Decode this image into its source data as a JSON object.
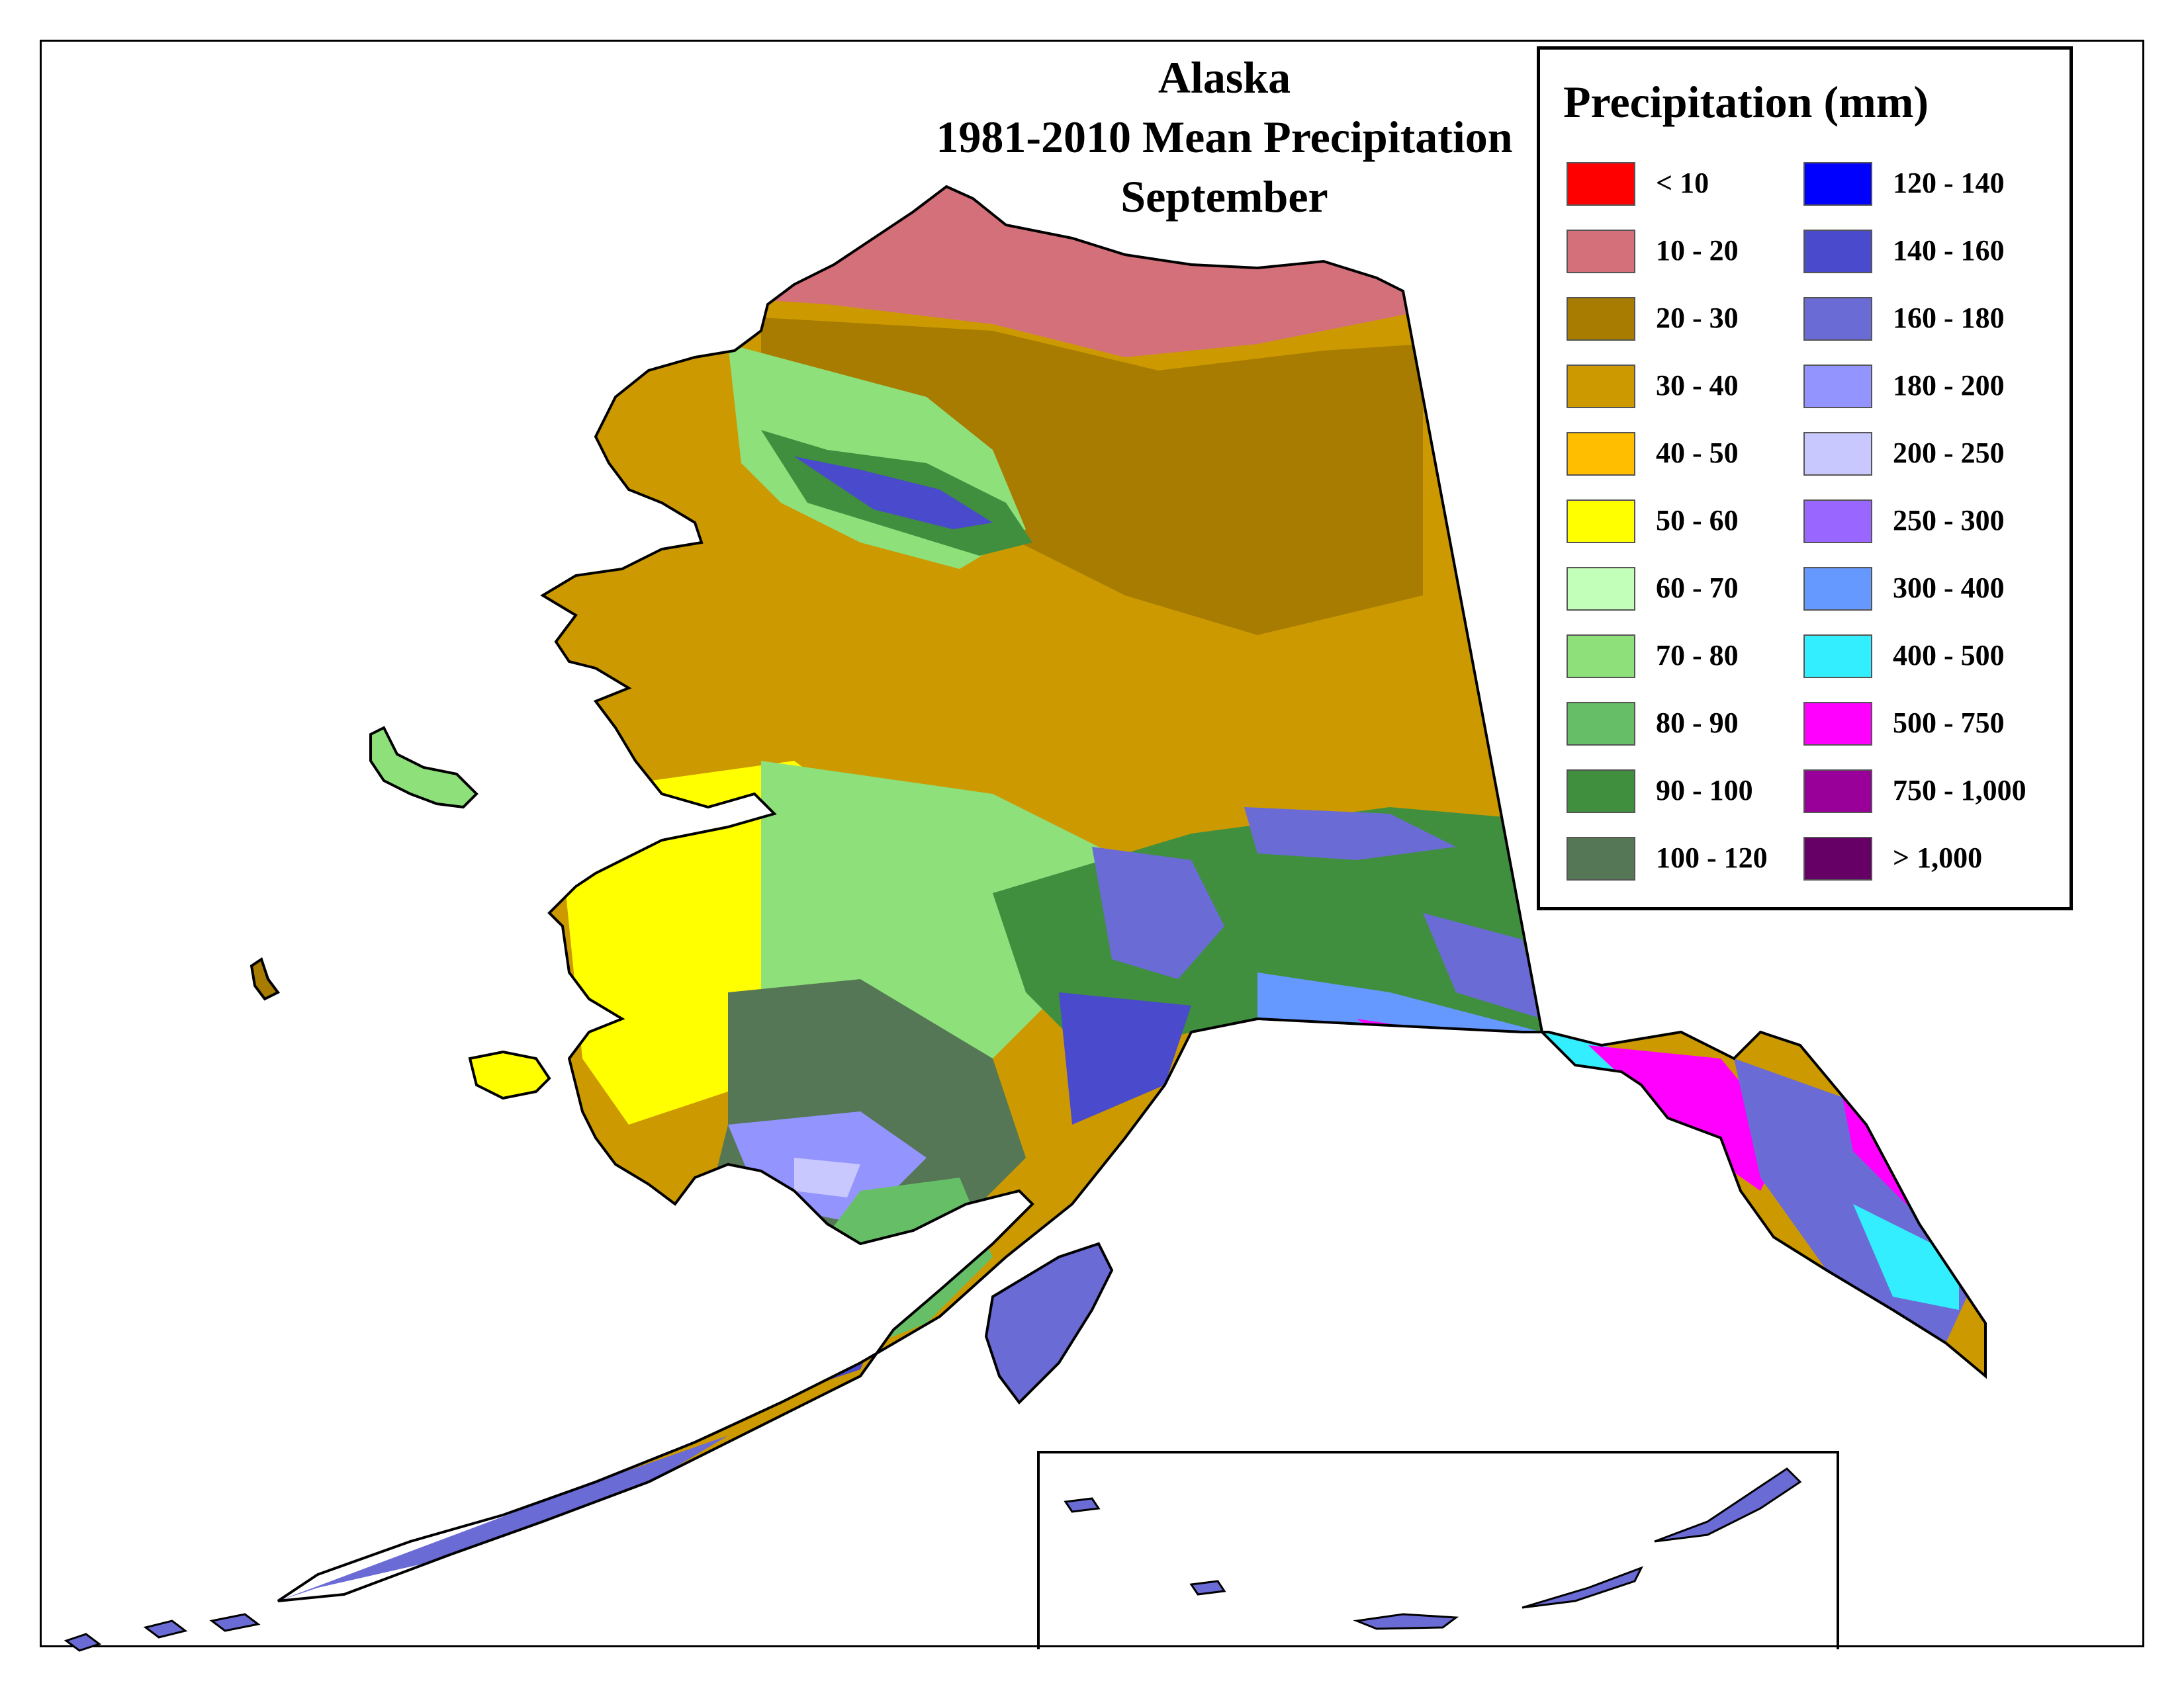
{
  "title": {
    "line1": "Alaska",
    "line2": "1981-2010 Mean Precipitation",
    "line3": "September"
  },
  "legend": {
    "title": "Precipitation (mm)",
    "left_column": [
      {
        "label": "< 10",
        "color": "#ff0000"
      },
      {
        "label": "10 - 20",
        "color": "#d4707a"
      },
      {
        "label": "20 - 30",
        "color": "#a87c00"
      },
      {
        "label": "30 - 40",
        "color": "#cc9a00"
      },
      {
        "label": "40 - 50",
        "color": "#ffbe00"
      },
      {
        "label": "50 - 60",
        "color": "#ffff00"
      },
      {
        "label": "60 - 70",
        "color": "#c2ffb8"
      },
      {
        "label": "70 - 80",
        "color": "#8ee07a"
      },
      {
        "label": "80 - 90",
        "color": "#66bf66"
      },
      {
        "label": "90 - 100",
        "color": "#3f8f3f"
      },
      {
        "label": "100 - 120",
        "color": "#557755"
      }
    ],
    "right_column": [
      {
        "label": "120 - 140",
        "color": "#0000ff"
      },
      {
        "label": "140 - 160",
        "color": "#4a4acc"
      },
      {
        "label": "160 - 180",
        "color": "#6b6bd6"
      },
      {
        "label": "180 - 200",
        "color": "#9494ff"
      },
      {
        "label": "200 - 250",
        "color": "#c8c8ff"
      },
      {
        "label": "250 - 300",
        "color": "#9966ff"
      },
      {
        "label": "300 - 400",
        "color": "#6699ff"
      },
      {
        "label": "400 - 500",
        "color": "#33eeff"
      },
      {
        "label": "500 - 750",
        "color": "#ff00ff"
      },
      {
        "label": "750 - 1,000",
        "color": "#990099"
      },
      {
        "label": "> 1,000",
        "color": "#660066"
      }
    ]
  }
}
